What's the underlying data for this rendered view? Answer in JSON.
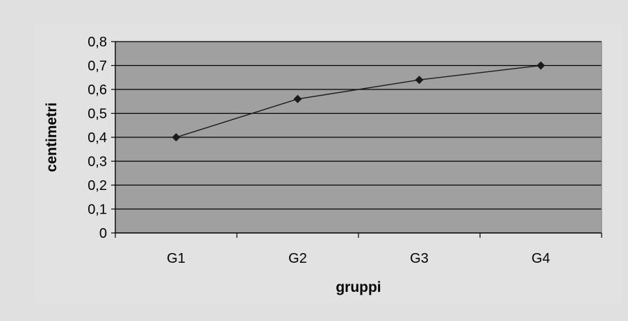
{
  "chart_data": {
    "type": "line",
    "categories": [
      "G1",
      "G2",
      "G3",
      "G4"
    ],
    "y_ticks": [
      "0",
      "0,1",
      "0,2",
      "0,3",
      "0,4",
      "0,5",
      "0,6",
      "0,7",
      "0,8"
    ],
    "series": [
      {
        "values": [
          0.4,
          0.56,
          0.64,
          0.7
        ]
      }
    ],
    "xlabel": "gruppi",
    "ylabel": "centimetri",
    "ylim": [
      0,
      0.8
    ],
    "grid": true,
    "legend": "none",
    "marker": "diamond",
    "colors": {
      "page_background": "#e0e0e0",
      "plot_background": "#a0a0a0",
      "gridline": "#000000",
      "line": "#1a1a1a",
      "marker": "#1a1a1a"
    }
  }
}
